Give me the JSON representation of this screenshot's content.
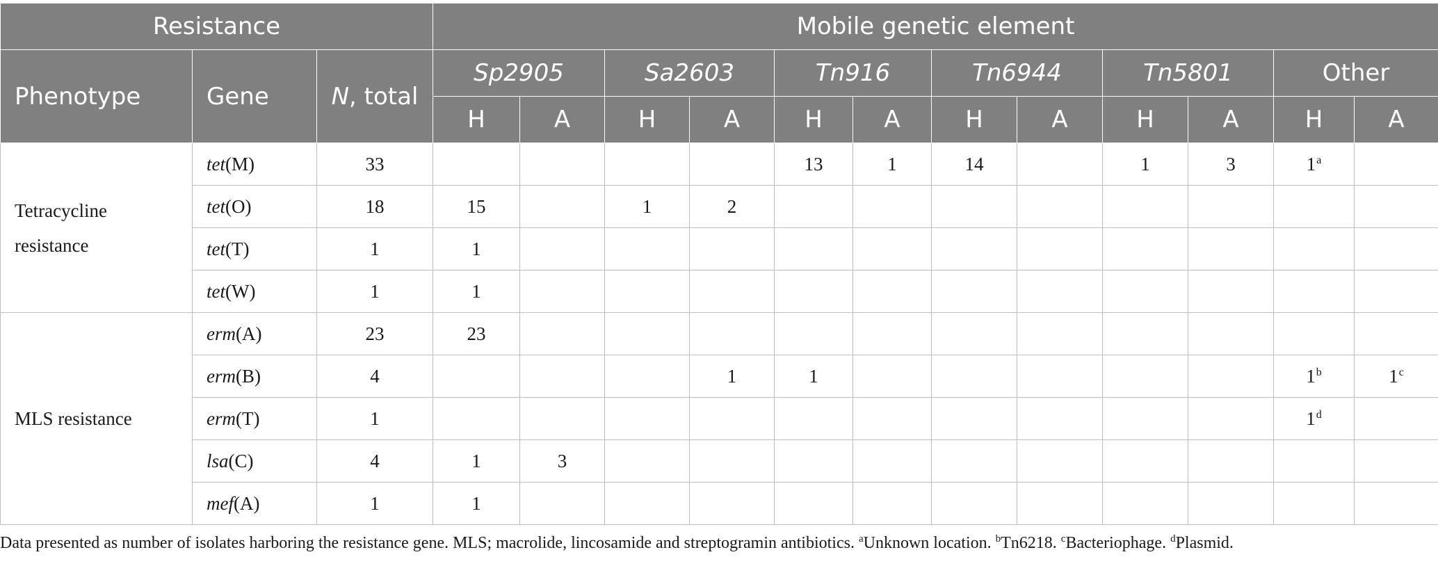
{
  "header": {
    "group_resistance": "Resistance",
    "group_mge": "Mobile genetic element",
    "phenotype": "Phenotype",
    "gene": "Gene",
    "n_total_italic": "N",
    "n_total_rest": ", total",
    "elements": [
      "Sp2905",
      "Sa2603",
      "Tn916",
      "Tn6944",
      "Tn5801",
      "Other"
    ],
    "elements_italic": [
      true,
      true,
      true,
      true,
      true,
      false
    ],
    "h_label": "H",
    "a_label": "A"
  },
  "rows": [
    {
      "gene_italic": "tet",
      "gene_rest": "(M)",
      "n": "33",
      "cells": [
        "",
        "",
        "",
        "",
        "13",
        "1",
        "14",
        "",
        "1",
        "3",
        "1",
        ""
      ],
      "sups": [
        "",
        "",
        "",
        "",
        "",
        "",
        "",
        "",
        "",
        "",
        "a",
        ""
      ]
    },
    {
      "gene_italic": "tet",
      "gene_rest": "(O)",
      "n": "18",
      "cells": [
        "15",
        "",
        "1",
        "2",
        "",
        "",
        "",
        "",
        "",
        "",
        "",
        ""
      ],
      "sups": [
        "",
        "",
        "",
        "",
        "",
        "",
        "",
        "",
        "",
        "",
        "",
        ""
      ]
    },
    {
      "gene_italic": "tet",
      "gene_rest": "(T)",
      "n": "1",
      "cells": [
        "1",
        "",
        "",
        "",
        "",
        "",
        "",
        "",
        "",
        "",
        "",
        ""
      ],
      "sups": [
        "",
        "",
        "",
        "",
        "",
        "",
        "",
        "",
        "",
        "",
        "",
        ""
      ]
    },
    {
      "gene_italic": "tet",
      "gene_rest": "(W)",
      "n": "1",
      "cells": [
        "1",
        "",
        "",
        "",
        "",
        "",
        "",
        "",
        "",
        "",
        "",
        ""
      ],
      "sups": [
        "",
        "",
        "",
        "",
        "",
        "",
        "",
        "",
        "",
        "",
        "",
        ""
      ]
    },
    {
      "gene_italic": "erm",
      "gene_rest": "(A)",
      "n": "23",
      "cells": [
        "23",
        "",
        "",
        "",
        "",
        "",
        "",
        "",
        "",
        "",
        "",
        ""
      ],
      "sups": [
        "",
        "",
        "",
        "",
        "",
        "",
        "",
        "",
        "",
        "",
        "",
        ""
      ]
    },
    {
      "gene_italic": "erm",
      "gene_rest": "(B)",
      "n": "4",
      "cells": [
        "",
        "",
        "",
        "1",
        "1",
        "",
        "",
        "",
        "",
        "",
        "1",
        "1"
      ],
      "sups": [
        "",
        "",
        "",
        "",
        "",
        "",
        "",
        "",
        "",
        "",
        "b",
        "c"
      ]
    },
    {
      "gene_italic": "erm",
      "gene_rest": "(T)",
      "n": "1",
      "cells": [
        "",
        "",
        "",
        "",
        "",
        "",
        "",
        "",
        "",
        "",
        "1",
        ""
      ],
      "sups": [
        "",
        "",
        "",
        "",
        "",
        "",
        "",
        "",
        "",
        "",
        "d",
        ""
      ]
    },
    {
      "gene_italic": "lsa",
      "gene_rest": "(C)",
      "n": "4",
      "cells": [
        "1",
        "3",
        "",
        "",
        "",
        "",
        "",
        "",
        "",
        "",
        "",
        ""
      ],
      "sups": [
        "",
        "",
        "",
        "",
        "",
        "",
        "",
        "",
        "",
        "",
        "",
        ""
      ]
    },
    {
      "gene_italic": "mef",
      "gene_rest": "(A)",
      "n": "1",
      "cells": [
        "1",
        "",
        "",
        "",
        "",
        "",
        "",
        "",
        "",
        "",
        "",
        ""
      ],
      "sups": [
        "",
        "",
        "",
        "",
        "",
        "",
        "",
        "",
        "",
        "",
        "",
        ""
      ]
    }
  ],
  "phenotypes": [
    {
      "line1": "Tetracycline",
      "line2": "resistance",
      "rows": 4
    },
    {
      "line1": "MLS resistance",
      "line2": "",
      "rows": 5
    }
  ],
  "footnote": {
    "text": "Data presented as number of isolates harboring the resistance gene. MLS; macrolide, lincosamide and streptogramin antibiotics.",
    "notes": [
      {
        "mark": "a",
        "text": "Unknown location."
      },
      {
        "mark": "b",
        "text": "Tn6218."
      },
      {
        "mark": "c",
        "text": "Bacteriophage."
      },
      {
        "mark": "d",
        "text": "Plasmid."
      }
    ]
  }
}
